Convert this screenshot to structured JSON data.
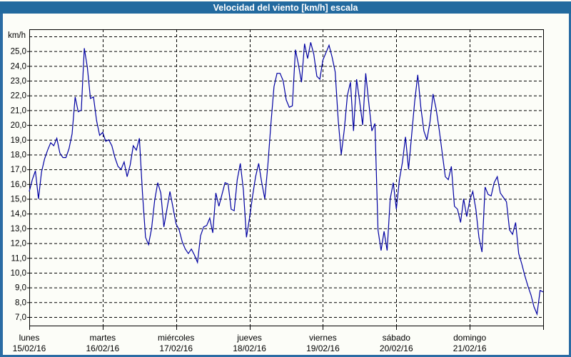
{
  "window": {
    "title": "Velocidad del viento [km/h] escala"
  },
  "colors": {
    "titlebar": "#226a9f",
    "frame": "#2b6ca4",
    "plot_background": "#fcfdf8",
    "plot_border": "#000000",
    "grid": "#000000",
    "line": "#0000a2",
    "label_text": "#000000",
    "title_text": "#ffffff"
  },
  "chart_data": {
    "type": "line",
    "title": "Velocidad del viento [km/h] escala",
    "ylabel": "km/h",
    "unit_label": "km/h",
    "ylim": [
      6.4,
      26.5
    ],
    "grid": "dashed",
    "legend": "none",
    "y_axis": {
      "tick_step": 1.0,
      "top_unlabeled_gridline": 26,
      "ticks": [
        {
          "value": 25,
          "label": "25,0"
        },
        {
          "value": 24,
          "label": "24,0"
        },
        {
          "value": 23,
          "label": "23,0"
        },
        {
          "value": 22,
          "label": "22,0"
        },
        {
          "value": 21,
          "label": "21,0"
        },
        {
          "value": 20,
          "label": "20,0"
        },
        {
          "value": 19,
          "label": "19,0"
        },
        {
          "value": 18,
          "label": "18,0"
        },
        {
          "value": 17,
          "label": "17,0"
        },
        {
          "value": 16,
          "label": "16,0"
        },
        {
          "value": 15,
          "label": "15,0"
        },
        {
          "value": 14,
          "label": "14,0"
        },
        {
          "value": 13,
          "label": "13,0"
        },
        {
          "value": 12,
          "label": "12,0"
        },
        {
          "value": 11,
          "label": "11,0"
        },
        {
          "value": 10,
          "label": "10,0"
        },
        {
          "value": 9,
          "label": "9,0"
        },
        {
          "value": 8,
          "label": "8,0"
        },
        {
          "value": 7,
          "label": "7,0"
        }
      ]
    },
    "series_name": "Velocidad del viento",
    "days": [
      {
        "name": "lunes",
        "date": "15/02/16",
        "hourly": [
          15.5,
          16.3,
          16.9,
          15.0,
          16.8,
          17.7,
          18.3,
          18.8,
          18.6,
          19.1,
          18.1,
          17.8,
          17.8,
          18.4,
          19.4,
          21.9,
          20.9,
          21.0,
          25.2,
          23.9,
          21.8,
          21.9,
          20.3,
          19.3
        ]
      },
      {
        "name": "martes",
        "date": "16/02/16",
        "hourly": [
          19.5,
          18.9,
          19.0,
          18.6,
          17.8,
          17.2,
          17.0,
          17.5,
          16.5,
          17.3,
          18.6,
          18.3,
          19.1,
          15.4,
          12.4,
          11.9,
          13.0,
          14.9,
          16.1,
          15.4,
          13.1,
          14.3,
          15.5,
          14.4
        ]
      },
      {
        "name": "miércoles",
        "date": "17/02/16",
        "hourly": [
          13.3,
          12.9,
          12.1,
          11.6,
          11.3,
          11.6,
          11.2,
          10.7,
          12.5,
          13.1,
          13.2,
          13.7,
          12.7,
          15.4,
          14.5,
          15.3,
          16.1,
          16.0,
          14.3,
          14.2,
          16.3,
          17.4,
          15.6,
          12.4
        ]
      },
      {
        "name": "jueves",
        "date": "18/02/16",
        "hourly": [
          13.7,
          15.2,
          16.5,
          17.4,
          16.1,
          15.0,
          17.3,
          20.1,
          22.6,
          23.5,
          23.5,
          23.0,
          21.7,
          21.2,
          21.3,
          25.1,
          24.1,
          22.9,
          25.5,
          24.5,
          25.6,
          24.8,
          23.3,
          23.1
        ]
      },
      {
        "name": "viernes",
        "date": "19/02/16",
        "hourly": [
          24.4,
          24.9,
          25.4,
          24.6,
          23.6,
          20.3,
          18.0,
          19.7,
          22.0,
          22.9,
          19.6,
          23.1,
          21.6,
          20.0,
          23.5,
          21.5,
          19.6,
          20.1,
          12.9,
          11.5,
          12.8,
          11.5,
          15.0,
          16.1
        ]
      },
      {
        "name": "sábado",
        "date": "20/02/16",
        "hourly": [
          14.3,
          16.3,
          17.5,
          19.2,
          17.0,
          19.3,
          21.6,
          23.4,
          21.2,
          19.6,
          19.0,
          20.2,
          22.1,
          21.1,
          19.7,
          18.1,
          16.5,
          16.3,
          17.2,
          14.5,
          14.3,
          13.4,
          15.0,
          13.8
        ]
      },
      {
        "name": "domingo",
        "date": "21/02/16",
        "hourly": [
          14.9,
          15.5,
          14.3,
          12.4,
          11.4,
          15.8,
          15.3,
          15.2,
          16.1,
          16.5,
          15.4,
          15.1,
          14.8,
          12.9,
          12.6,
          13.4,
          11.3,
          10.6,
          9.8,
          9.1,
          8.5,
          7.7,
          7.2,
          8.8
        ]
      }
    ],
    "final_value": 8.7
  }
}
